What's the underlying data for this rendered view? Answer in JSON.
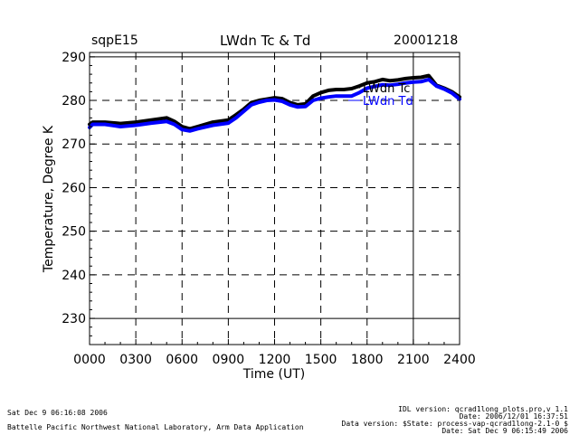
{
  "header": {
    "site": "sqpE15",
    "title": "LWdn Tc & Td",
    "date": "20001218"
  },
  "chart_data": {
    "type": "line",
    "title": "LWdn Tc & Td",
    "xlabel": "Time (UT)",
    "ylabel": "Temperature, Degree K",
    "xlim": [
      0,
      24
    ],
    "ylim": [
      224,
      291
    ],
    "x_ticks": [
      0,
      3,
      6,
      9,
      12,
      15,
      18,
      21,
      24
    ],
    "x_tick_labels": [
      "0000",
      "0300",
      "0600",
      "0900",
      "1200",
      "1500",
      "1800",
      "2100",
      "2400"
    ],
    "y_ticks": [
      230,
      240,
      250,
      260,
      270,
      280,
      290
    ],
    "y_tick_labels": [
      "230",
      "240",
      "250",
      "260",
      "270",
      "280",
      "290"
    ],
    "grid": "dashed",
    "legend_position": "top-right",
    "series": [
      {
        "name": "LWdn Tc",
        "color": "#000000",
        "x": [
          0,
          0.2,
          1,
          2,
          3,
          4,
          5,
          5.5,
          6,
          6.5,
          7,
          8,
          9,
          9.5,
          10,
          10.5,
          11,
          11.5,
          12,
          12.5,
          13,
          13.5,
          14,
          14.5,
          15,
          15.5,
          16,
          16.5,
          17,
          17.5,
          18,
          18.5,
          19,
          19.5,
          20,
          20.5,
          21,
          21.5,
          22,
          22.5,
          23,
          23.5,
          24
        ],
        "y": [
          274.5,
          275,
          275,
          274.7,
          275,
          275.5,
          276,
          275.2,
          274,
          273.5,
          274,
          275,
          275.5,
          276.7,
          278,
          279.5,
          280,
          280.3,
          280.6,
          280.4,
          279.5,
          279,
          279.2,
          281,
          281.8,
          282.3,
          282.5,
          282.5,
          282.7,
          283.3,
          284,
          284.3,
          284.8,
          284.5,
          284.7,
          285,
          285.2,
          285.3,
          285.7,
          283.5,
          282.8,
          282,
          280.8
        ]
      },
      {
        "name": "LWdn Td",
        "color": "#0000ff",
        "x": [
          0,
          0.2,
          1,
          2,
          3,
          4,
          5,
          5.5,
          6,
          6.5,
          7,
          8,
          9,
          9.5,
          10,
          10.5,
          11,
          11.5,
          12,
          12.5,
          13,
          13.5,
          14,
          14.5,
          15,
          15.5,
          16,
          16.5,
          17,
          17.5,
          18,
          18.5,
          19,
          19.5,
          20,
          20.5,
          21,
          21.5,
          22,
          22.5,
          23,
          23.5,
          24
        ],
        "y": [
          273.8,
          274.5,
          274.5,
          274,
          274.3,
          274.8,
          275.2,
          274.5,
          273.3,
          273,
          273.5,
          274.3,
          274.8,
          276,
          277.5,
          279,
          279.6,
          280,
          280.1,
          279.8,
          279,
          278.5,
          278.6,
          280,
          280.5,
          280.8,
          281,
          281,
          281,
          281.8,
          282.8,
          283.2,
          283.6,
          283.5,
          283.7,
          284,
          284.2,
          284.3,
          284.8,
          283.3,
          282.6,
          281.7,
          280.3
        ]
      }
    ]
  },
  "footer": {
    "run_time": "Sat Dec  9 06:16:08 2006",
    "organization": "Battelle Pacific Northwest National Laboratory, Arm Data Application",
    "idl_version": "IDL version: qcrad1long_plots.pro,v 1.1",
    "date_line": "Date: 2006/12/01 16:37:51",
    "data_version": "Data version: $State: process-vap-qcrad1long-2.1-0 $",
    "date_line2": "Date: Sat Dec  9 06:15:49 2006"
  }
}
